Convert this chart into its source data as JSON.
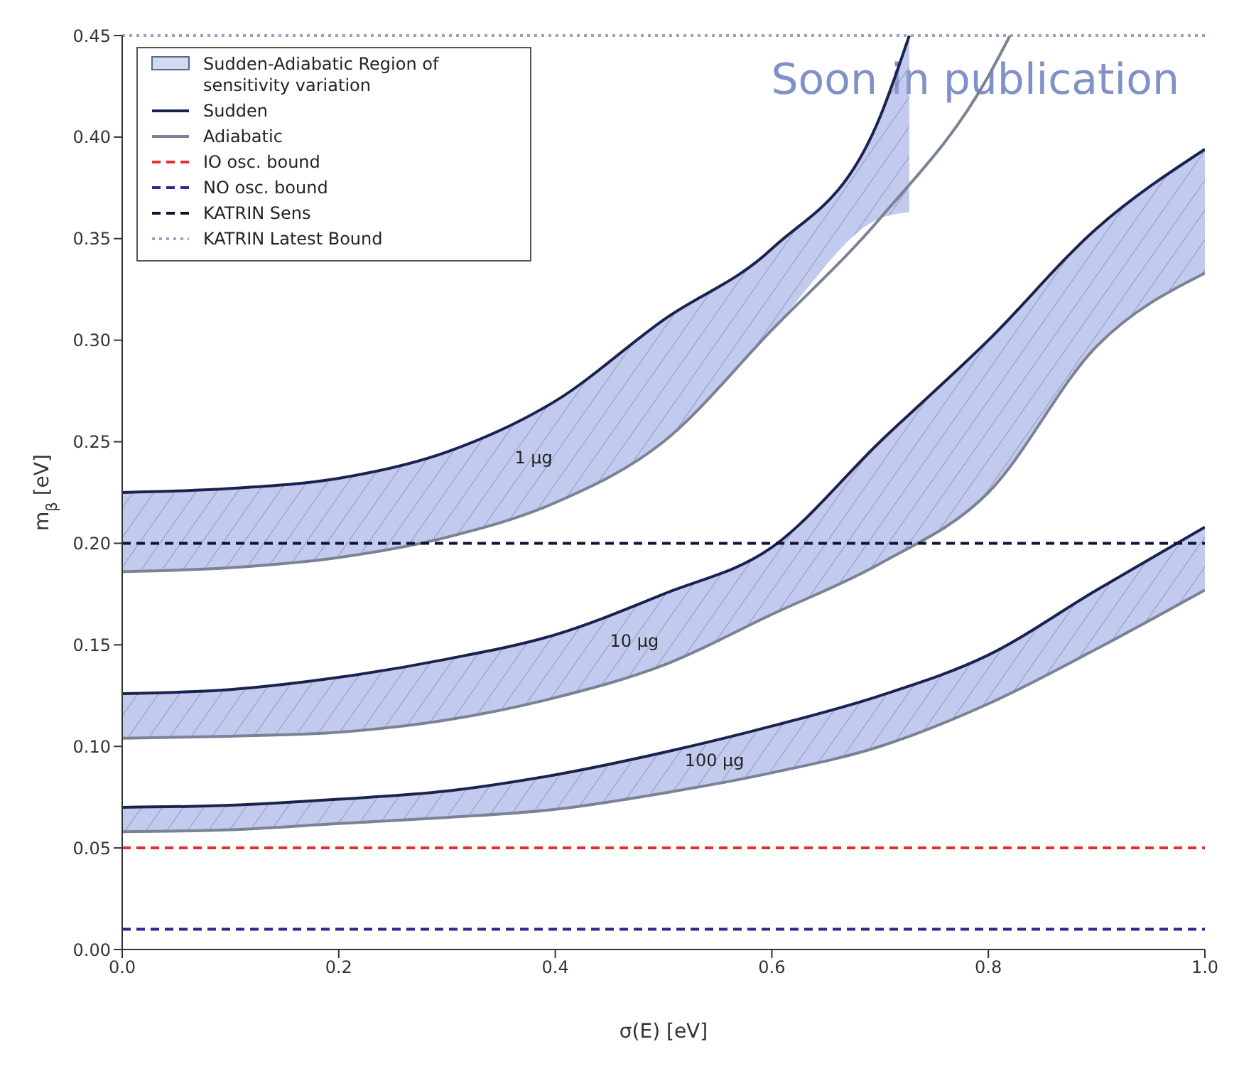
{
  "chart_data": {
    "type": "line",
    "xlabel": "σ(E) [eV]",
    "ylabel": "m$_{β}$ [eV]",
    "xlim": [
      0,
      1
    ],
    "ylim": [
      0,
      0.45
    ],
    "xticks": [
      {
        "value": 0,
        "label": "0.0"
      },
      {
        "value": 0.2,
        "label": "0.2"
      },
      {
        "value": 0.4,
        "label": "0.4"
      },
      {
        "value": 0.6,
        "label": "0.6"
      },
      {
        "value": 0.8,
        "label": "0.8"
      },
      {
        "value": 1,
        "label": "1.0"
      }
    ],
    "yticks": [
      {
        "value": 0,
        "label": "0.00"
      },
      {
        "value": 0.05,
        "label": "0.05"
      },
      {
        "value": 0.1,
        "label": "0.10"
      },
      {
        "value": 0.15,
        "label": "0.15"
      },
      {
        "value": 0.2,
        "label": "0.20"
      },
      {
        "value": 0.25,
        "label": "0.25"
      },
      {
        "value": 0.3,
        "label": "0.30"
      },
      {
        "value": 0.35,
        "label": "0.35"
      },
      {
        "value": 0.4,
        "label": "0.40"
      },
      {
        "value": 0.45,
        "label": "0.45"
      }
    ],
    "grid": false,
    "legend": "top left",
    "marker": "none",
    "series": [
      {
        "name": "Sudden",
        "color": "#1a2350",
        "x": [
          0,
          0.1,
          0.2,
          0.3,
          0.4,
          0.5,
          0.6,
          0.7,
          0.727
        ],
        "values": [
          0.225,
          0.227,
          0.232,
          0.245,
          0.27,
          0.31,
          0.345,
          0.41,
          0.45
        ],
        "lower": [
          0.186,
          0.188,
          0.193,
          0.203,
          0.22,
          0.25,
          0.305,
          0.36,
          0.363
        ],
        "upper": [
          0.225,
          0.227,
          0.232,
          0.245,
          0.27,
          0.31,
          0.345,
          0.41,
          0.45
        ]
      },
      {
        "color": "#1a2350",
        "x": [
          0,
          0.1,
          0.2,
          0.3,
          0.4,
          0.5,
          0.6,
          0.7,
          0.8,
          0.9,
          1
        ],
        "values": [
          0.126,
          0.128,
          0.134,
          0.143,
          0.155,
          0.175,
          0.198,
          0.25,
          0.3,
          0.355,
          0.394
        ],
        "lower": [
          0.104,
          0.105,
          0.107,
          0.113,
          0.124,
          0.14,
          0.165,
          0.19,
          0.225,
          0.297,
          0.333
        ],
        "upper": [
          0.126,
          0.128,
          0.134,
          0.143,
          0.155,
          0.175,
          0.198,
          0.25,
          0.3,
          0.355,
          0.394
        ]
      },
      {
        "color": "#1a2350",
        "x": [
          0,
          0.1,
          0.2,
          0.3,
          0.4,
          0.5,
          0.6,
          0.7,
          0.8,
          0.9,
          1
        ],
        "values": [
          0.07,
          0.071,
          0.074,
          0.078,
          0.086,
          0.097,
          0.11,
          0.125,
          0.145,
          0.177,
          0.208
        ],
        "lower": [
          0.058,
          0.059,
          0.062,
          0.065,
          0.069,
          0.077,
          0.087,
          0.1,
          0.121,
          0.148,
          0.177
        ],
        "upper": [
          0.07,
          0.071,
          0.074,
          0.078,
          0.086,
          0.097,
          0.11,
          0.125,
          0.145,
          0.177,
          0.208
        ]
      },
      {
        "name": "Adiabatic",
        "color": "#7a8294",
        "x": [
          0,
          0.1,
          0.2,
          0.3,
          0.4,
          0.5,
          0.6,
          0.7,
          0.8,
          0.82
        ],
        "values": [
          0.186,
          0.188,
          0.193,
          0.203,
          0.22,
          0.25,
          0.305,
          0.36,
          0.43,
          0.45
        ]
      },
      {
        "color": "#7a8294",
        "x": [
          0,
          0.1,
          0.2,
          0.3,
          0.4,
          0.5,
          0.6,
          0.7,
          0.8,
          0.9,
          1
        ],
        "values": [
          0.104,
          0.105,
          0.107,
          0.113,
          0.124,
          0.14,
          0.165,
          0.19,
          0.225,
          0.297,
          0.333
        ]
      },
      {
        "color": "#7a8294",
        "x": [
          0,
          0.1,
          0.2,
          0.3,
          0.4,
          0.5,
          0.6,
          0.7,
          0.8,
          0.9,
          1
        ],
        "values": [
          0.058,
          0.059,
          0.062,
          0.065,
          0.069,
          0.077,
          0.087,
          0.1,
          0.121,
          0.148,
          0.177
        ]
      }
    ],
    "ref_lines": [
      {
        "axis": "y",
        "value": 0.05,
        "label": "IO osc. bound",
        "color": "#e03030",
        "line_style": "dashed"
      },
      {
        "axis": "y",
        "value": 0.01,
        "label": "NO osc. bound",
        "color": "#2a2a90",
        "line_style": "dashed"
      },
      {
        "axis": "y",
        "value": 0.2,
        "label": "KATRIN Sens",
        "color": "#111133",
        "line_style": "dashed"
      },
      {
        "axis": "y",
        "value": 0.45,
        "label": "KATRIN Latest Bound",
        "color": "#9aa3c4",
        "line_style": "dotted"
      }
    ],
    "annotations": [
      "Sudden-Adiabatic Region of sensitivity variation",
      "1 μg",
      "10 μg",
      "100 μg",
      "Soon in publication"
    ]
  }
}
